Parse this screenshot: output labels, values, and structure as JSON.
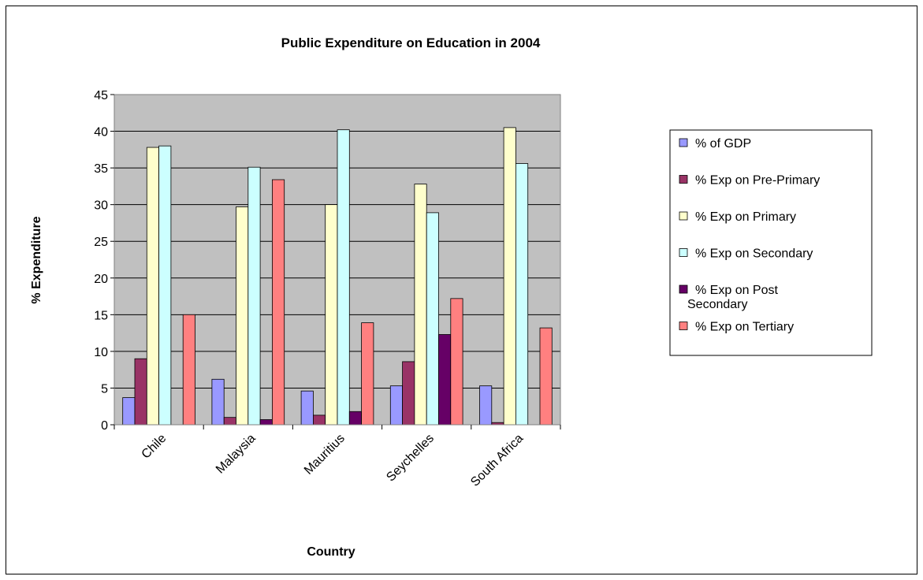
{
  "chart_data": {
    "type": "bar",
    "title": "Public Expenditure on Education in 2004",
    "xlabel": "Country",
    "ylabel": "% Expenditure",
    "ylim": [
      0,
      45
    ],
    "yticks": [
      0,
      5,
      10,
      15,
      20,
      25,
      30,
      35,
      40,
      45
    ],
    "grid": true,
    "legend_position": "right",
    "plot_background": "#c0c0c0",
    "categories": [
      "Chile",
      "Malaysia",
      "Mauritius",
      "Seychelles",
      "South Africa"
    ],
    "series": [
      {
        "name": "% of GDP",
        "color": "#9999ff",
        "values": [
          3.7,
          6.2,
          4.6,
          5.3,
          5.3
        ]
      },
      {
        "name": "% Exp on Pre-Primary",
        "color": "#993366",
        "values": [
          9.0,
          1.0,
          1.3,
          8.6,
          0.3
        ]
      },
      {
        "name": "% Exp on Primary",
        "color": "#ffffcc",
        "values": [
          37.8,
          29.7,
          30.0,
          32.8,
          40.5
        ]
      },
      {
        "name": "% Exp on Secondary",
        "color": "#ccffff",
        "values": [
          38.0,
          35.1,
          40.2,
          28.9,
          35.6
        ]
      },
      {
        "name": "% Exp on  Post Secondary",
        "color": "#660066",
        "values": [
          0,
          0.7,
          1.8,
          12.3,
          0
        ]
      },
      {
        "name": "% Exp on  Tertiary",
        "color": "#ff8080",
        "values": [
          15.0,
          33.4,
          13.9,
          17.2,
          13.2
        ]
      }
    ],
    "legend_lines": [
      [
        "% of GDP"
      ],
      [
        "% Exp on Pre-Primary"
      ],
      [
        "% Exp on Primary"
      ],
      [
        "% Exp on Secondary"
      ],
      [
        "% Exp on  Post",
        "Secondary"
      ],
      [
        "% Exp on  Tertiary"
      ]
    ]
  }
}
